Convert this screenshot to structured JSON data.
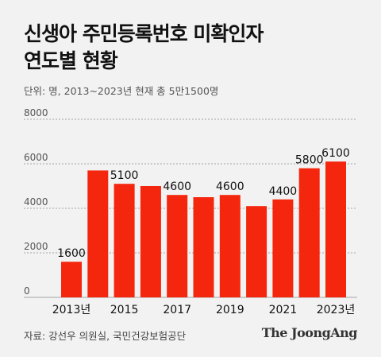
{
  "header": {
    "title_line1": "신생아 주민등록번호 미확인자",
    "title_line2": "연도별 현황",
    "unit_note": "단위: 명, 2013~2023년 현재 총 5만1500명"
  },
  "footer": {
    "source": "자료: 강선우 의원실, 국민건강보험공단",
    "brand": "The JoongAng"
  },
  "colors": {
    "bar": "#f4260d",
    "background": "#f2f2f2",
    "grid": "#8a8a8a"
  },
  "chart_data": {
    "type": "bar",
    "categories": [
      "2013",
      "2014",
      "2015",
      "2016",
      "2017",
      "2018",
      "2019",
      "2020",
      "2021",
      "2022",
      "2023"
    ],
    "values": [
      1600,
      5700,
      5100,
      5000,
      4600,
      4500,
      4600,
      4100,
      4400,
      5800,
      6100
    ],
    "data_labels": [
      {
        "index": 0,
        "text": "1600"
      },
      {
        "index": 2,
        "text": "5100"
      },
      {
        "index": 4,
        "text": "4600"
      },
      {
        "index": 6,
        "text": "4600"
      },
      {
        "index": 8,
        "text": "4400"
      },
      {
        "index": 9,
        "text": "5800"
      },
      {
        "index": 10,
        "text": "6100"
      }
    ],
    "x_tick_labels": [
      {
        "index": 0,
        "text": "2013년"
      },
      {
        "index": 2,
        "text": "2015"
      },
      {
        "index": 4,
        "text": "2017"
      },
      {
        "index": 6,
        "text": "2019"
      },
      {
        "index": 8,
        "text": "2021"
      },
      {
        "index": 10,
        "text": "2023년"
      }
    ],
    "y_ticks": [
      0,
      2000,
      4000,
      6000,
      8000
    ],
    "ylim": [
      0,
      8000
    ],
    "grid": true
  }
}
